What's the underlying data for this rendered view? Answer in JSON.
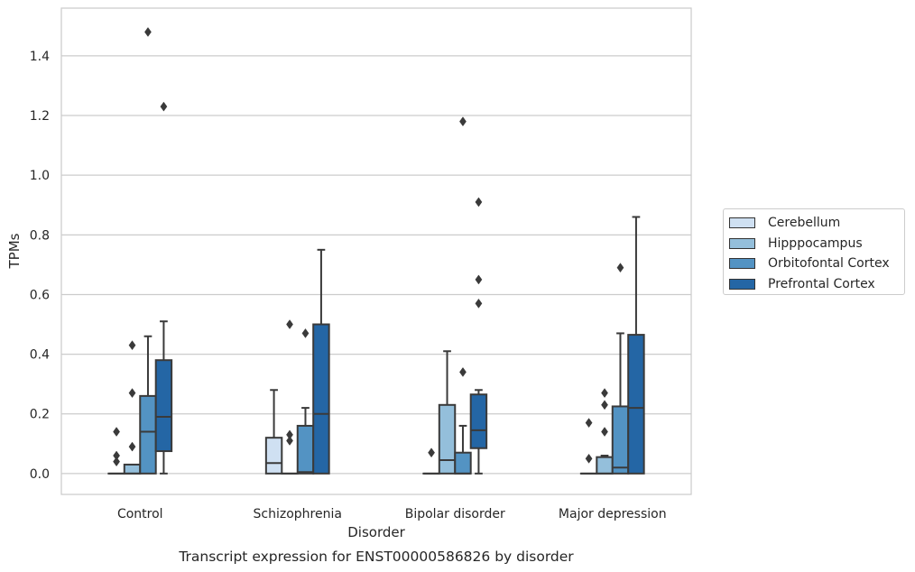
{
  "chart_data": {
    "type": "boxplot",
    "title": "",
    "caption": "Transcript expression for ENST00000586826 by disorder",
    "xlabel": "Disorder",
    "ylabel": "TPMs",
    "ylim": [
      -0.07,
      1.56
    ],
    "yticks": [
      "0.0",
      "0.2",
      "0.4",
      "0.6",
      "0.8",
      "1.0",
      "1.2",
      "1.4"
    ],
    "categories": [
      "Control",
      "Schizophrenia",
      "Bipolar disorder",
      "Major depression"
    ],
    "grid": "horizontal",
    "legend_position": "right",
    "series": [
      {
        "name": "Cerebellum",
        "color": "#cfe0f2",
        "boxes": [
          {
            "min": 0,
            "q1": 0,
            "median": 0,
            "q3": 0,
            "max": 0,
            "outliers": [
              0.14,
              0.06,
              0.04
            ]
          },
          {
            "min": 0,
            "q1": 0,
            "median": 0.035,
            "q3": 0.12,
            "max": 0.28,
            "outliers": []
          },
          {
            "min": 0,
            "q1": 0,
            "median": 0,
            "q3": 0,
            "max": 0,
            "outliers": [
              0.07
            ]
          },
          {
            "min": 0,
            "q1": 0,
            "median": 0,
            "q3": 0,
            "max": 0,
            "outliers": [
              0.17,
              0.05
            ]
          }
        ]
      },
      {
        "name": "Hipppocampus",
        "color": "#94bfdb",
        "boxes": [
          {
            "min": 0,
            "q1": 0,
            "median": 0,
            "q3": 0.03,
            "max": 0.03,
            "outliers": [
              0.43,
              0.27,
              0.09
            ]
          },
          {
            "min": 0,
            "q1": 0,
            "median": 0,
            "q3": 0,
            "max": 0,
            "outliers": [
              0.5,
              0.13,
              0.11
            ]
          },
          {
            "min": 0,
            "q1": 0,
            "median": 0.045,
            "q3": 0.23,
            "max": 0.41,
            "outliers": []
          },
          {
            "min": 0,
            "q1": 0,
            "median": 0,
            "q3": 0.055,
            "max": 0.06,
            "outliers": [
              0.27,
              0.23,
              0.14
            ]
          }
        ]
      },
      {
        "name": "Orbitofontal Cortex",
        "color": "#5393c3",
        "boxes": [
          {
            "min": 0,
            "q1": 0,
            "median": 0.14,
            "q3": 0.26,
            "max": 0.46,
            "outliers": [
              1.48
            ]
          },
          {
            "min": 0,
            "q1": 0,
            "median": 0.005,
            "q3": 0.16,
            "max": 0.22,
            "outliers": [
              0.47
            ]
          },
          {
            "min": 0,
            "q1": 0,
            "median": 0,
            "q3": 0.07,
            "max": 0.16,
            "outliers": [
              1.18,
              0.34
            ]
          },
          {
            "min": 0,
            "q1": 0,
            "median": 0.02,
            "q3": 0.225,
            "max": 0.47,
            "outliers": [
              0.69
            ]
          }
        ]
      },
      {
        "name": "Prefrontal Cortex",
        "color": "#2466a5",
        "boxes": [
          {
            "min": 0,
            "q1": 0.075,
            "median": 0.19,
            "q3": 0.38,
            "max": 0.51,
            "outliers": [
              1.23
            ]
          },
          {
            "min": 0,
            "q1": 0,
            "median": 0.2,
            "q3": 0.5,
            "max": 0.75,
            "outliers": []
          },
          {
            "min": 0,
            "q1": 0.085,
            "median": 0.145,
            "q3": 0.265,
            "max": 0.28,
            "outliers": [
              0.91,
              0.65,
              0.57
            ]
          },
          {
            "min": 0,
            "q1": 0,
            "median": 0.22,
            "q3": 0.465,
            "max": 0.86,
            "outliers": []
          }
        ]
      }
    ]
  }
}
